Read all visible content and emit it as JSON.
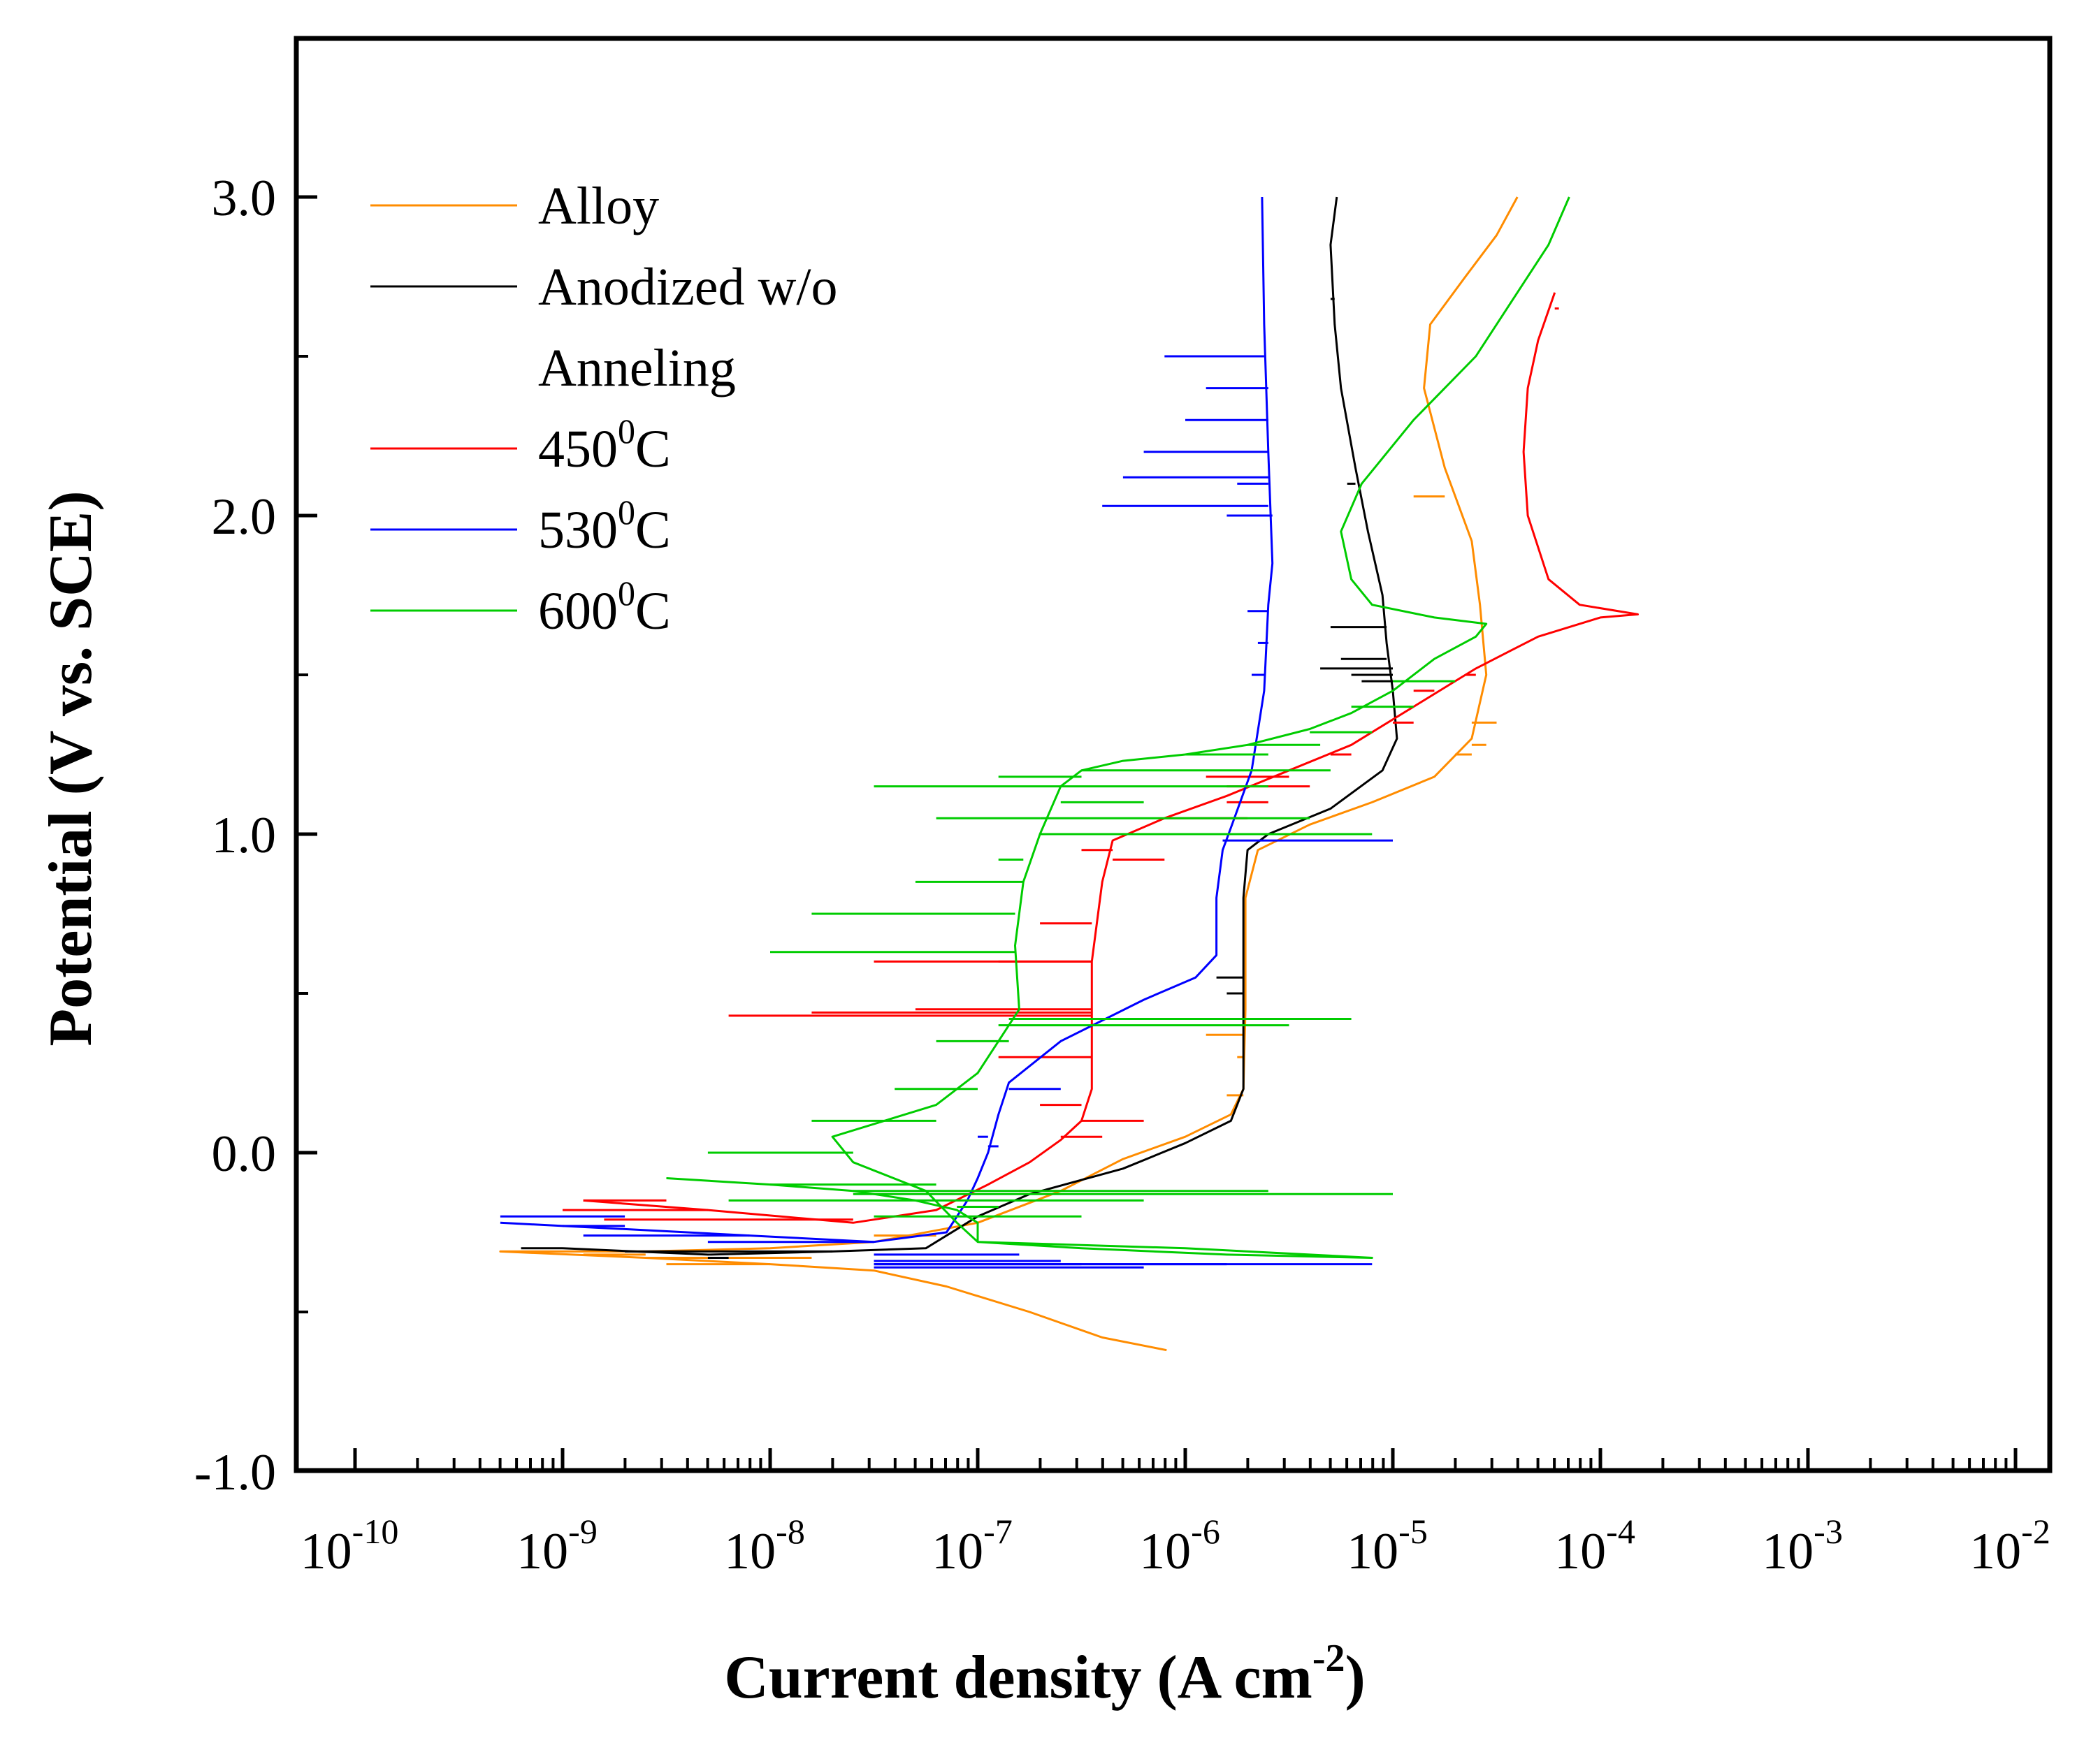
{
  "chart_data": {
    "type": "line",
    "title": "",
    "xlabel": "Current density (A cm",
    "xlabel_sup": "-2",
    "xlabel_end": ")",
    "ylabel": "Potential (V vs. SCE)",
    "x_scale": "log",
    "xlim_exp": [
      -10,
      -1.6
    ],
    "ylim": [
      -1.0,
      3.5
    ],
    "x_ticks": [
      {
        "exp": -10,
        "base": "10",
        "sup": "-10"
      },
      {
        "exp": -9,
        "base": "10",
        "sup": "-9"
      },
      {
        "exp": -8,
        "base": "10",
        "sup": "-8"
      },
      {
        "exp": -7,
        "base": "10",
        "sup": "-7"
      },
      {
        "exp": -6,
        "base": "10",
        "sup": "-6"
      },
      {
        "exp": -5,
        "base": "10",
        "sup": "-5"
      },
      {
        "exp": -4,
        "base": "10",
        "sup": "-4"
      },
      {
        "exp": -3,
        "base": "10",
        "sup": "-3"
      },
      {
        "exp": -2,
        "base": "10",
        "sup": "-2"
      }
    ],
    "y_ticks": [
      {
        "value": -1.0,
        "label": "-1.0"
      },
      {
        "value": 0.0,
        "label": "0.0"
      },
      {
        "value": 1.0,
        "label": "1.0"
      },
      {
        "value": 2.0,
        "label": "2.0"
      },
      {
        "value": 3.0,
        "label": "3.0"
      }
    ],
    "y_minor_ticks": [
      -0.5,
      0.5,
      1.5,
      2.5
    ],
    "legend": {
      "placement": "top-left",
      "entries": [
        {
          "lines": [
            {
              "text": "Alloy"
            }
          ],
          "color": "#ff8c00"
        },
        {
          "lines": [
            {
              "text": "Anodized w/o"
            },
            {
              "text": "Anneling"
            }
          ],
          "color": "#000000"
        },
        {
          "lines": [
            {
              "text": "450",
              "sup": "0",
              "tail": "C"
            }
          ],
          "color": "#ff0000"
        },
        {
          "lines": [
            {
              "text": "530",
              "sup": "0",
              "tail": "C"
            }
          ],
          "color": "#0000ff"
        },
        {
          "lines": [
            {
              "text": "600",
              "sup": "0",
              "tail": "C"
            }
          ],
          "color": "#00cc00"
        }
      ]
    },
    "series": [
      {
        "name": "Alloy",
        "color": "#ff8c00",
        "width": 3,
        "points": [
          [
            -6.09,
            -0.62
          ],
          [
            -6.4,
            -0.58
          ],
          [
            -6.75,
            -0.5
          ],
          [
            -7.15,
            -0.42
          ],
          [
            -7.5,
            -0.37
          ],
          [
            -8.0,
            -0.35
          ],
          [
            -8.6,
            -0.33
          ],
          [
            -9.3,
            -0.31
          ],
          [
            -8.6,
            -0.31
          ],
          [
            -8.0,
            -0.3
          ],
          [
            -7.5,
            -0.28
          ],
          [
            -7.0,
            -0.22
          ],
          [
            -6.6,
            -0.12
          ],
          [
            -6.3,
            -0.02
          ],
          [
            -6.0,
            0.05
          ],
          [
            -5.78,
            0.12
          ],
          [
            -5.72,
            0.2
          ],
          [
            -5.71,
            0.45
          ],
          [
            -5.71,
            0.8
          ],
          [
            -5.65,
            0.95
          ],
          [
            -5.4,
            1.03
          ],
          [
            -5.1,
            1.1
          ],
          [
            -4.8,
            1.18
          ],
          [
            -4.62,
            1.3
          ],
          [
            -4.55,
            1.5
          ],
          [
            -4.58,
            1.72
          ],
          [
            -4.62,
            1.92
          ],
          [
            -4.75,
            2.15
          ],
          [
            -4.85,
            2.4
          ],
          [
            -4.82,
            2.6
          ],
          [
            -4.65,
            2.75
          ],
          [
            -4.5,
            2.88
          ],
          [
            -4.4,
            3.0
          ]
        ],
        "spikes": [
          [
            -5.9,
            0.37
          ],
          [
            -5.8,
            0.18
          ],
          [
            -5.75,
            0.3
          ],
          [
            -4.85,
            2.28
          ],
          [
            -4.9,
            2.06
          ],
          [
            -4.5,
            1.35
          ],
          [
            -4.55,
            1.28
          ],
          [
            -4.7,
            1.25
          ],
          [
            -8.9,
            -0.32
          ],
          [
            -8.5,
            -0.35
          ],
          [
            -7.8,
            -0.33
          ],
          [
            -6.8,
            -0.12
          ],
          [
            -7.2,
            -0.26
          ]
        ]
      },
      {
        "name": "Anodized w/o Anneling",
        "color": "#000000",
        "width": 3,
        "points": [
          [
            -9.0,
            -0.3
          ],
          [
            -8.3,
            -0.32
          ],
          [
            -7.7,
            -0.31
          ],
          [
            -7.25,
            -0.3
          ],
          [
            -7.0,
            -0.2
          ],
          [
            -6.75,
            -0.13
          ],
          [
            -6.3,
            -0.05
          ],
          [
            -6.0,
            0.03
          ],
          [
            -5.78,
            0.1
          ],
          [
            -5.72,
            0.2
          ],
          [
            -5.72,
            0.8
          ],
          [
            -5.7,
            0.95
          ],
          [
            -5.6,
            1.0
          ],
          [
            -5.3,
            1.08
          ],
          [
            -5.05,
            1.2
          ],
          [
            -4.98,
            1.3
          ],
          [
            -5.0,
            1.45
          ],
          [
            -5.03,
            1.6
          ],
          [
            -5.05,
            1.75
          ],
          [
            -5.12,
            1.95
          ],
          [
            -5.18,
            2.15
          ],
          [
            -5.25,
            2.4
          ],
          [
            -5.28,
            2.6
          ],
          [
            -5.3,
            2.85
          ],
          [
            -5.27,
            3.0
          ]
        ],
        "spikes": [
          [
            -5.3,
            1.65
          ],
          [
            -5.25,
            1.55
          ],
          [
            -5.2,
            1.5
          ],
          [
            -5.35,
            1.52
          ],
          [
            -5.15,
            1.48
          ],
          [
            -5.3,
            2.68
          ],
          [
            -5.22,
            2.1
          ],
          [
            -5.8,
            0.5
          ],
          [
            -5.85,
            0.55
          ],
          [
            -9.2,
            -0.3
          ],
          [
            -8.7,
            -0.31
          ],
          [
            -8.2,
            -0.33
          ]
        ]
      },
      {
        "name": "450C",
        "color": "#ff0000",
        "width": 3,
        "points": [
          [
            -8.9,
            -0.15
          ],
          [
            -8.3,
            -0.18
          ],
          [
            -7.6,
            -0.22
          ],
          [
            -7.2,
            -0.18
          ],
          [
            -6.95,
            -0.1
          ],
          [
            -6.75,
            -0.03
          ],
          [
            -6.6,
            0.04
          ],
          [
            -6.5,
            0.1
          ],
          [
            -6.45,
            0.2
          ],
          [
            -6.45,
            0.4
          ],
          [
            -6.45,
            0.6
          ],
          [
            -6.4,
            0.85
          ],
          [
            -6.35,
            0.98
          ],
          [
            -6.1,
            1.05
          ],
          [
            -5.8,
            1.12
          ],
          [
            -5.5,
            1.2
          ],
          [
            -5.2,
            1.28
          ],
          [
            -4.9,
            1.4
          ],
          [
            -4.6,
            1.52
          ],
          [
            -4.3,
            1.62
          ],
          [
            -4.0,
            1.68
          ],
          [
            -3.82,
            1.69
          ],
          [
            -4.1,
            1.72
          ],
          [
            -4.25,
            1.8
          ],
          [
            -4.35,
            2.0
          ],
          [
            -4.37,
            2.2
          ],
          [
            -4.35,
            2.4
          ],
          [
            -4.3,
            2.55
          ],
          [
            -4.22,
            2.7
          ]
        ],
        "spikes": [
          [
            -8.5,
            -0.15
          ],
          [
            -9.0,
            -0.18
          ],
          [
            -8.8,
            -0.21
          ],
          [
            -8.2,
            0.43
          ],
          [
            -7.8,
            0.44
          ],
          [
            -7.3,
            0.45
          ],
          [
            -7.5,
            0.6
          ],
          [
            -6.9,
            0.6
          ],
          [
            -6.7,
            0.72
          ],
          [
            -6.1,
            0.92
          ],
          [
            -6.5,
            0.95
          ],
          [
            -6.4,
            0.9
          ],
          [
            -6.9,
            0.3
          ],
          [
            -6.7,
            0.15
          ],
          [
            -6.4,
            0.05
          ],
          [
            -6.2,
            0.1
          ],
          [
            -5.9,
            1.0
          ],
          [
            -5.7,
            1.05
          ],
          [
            -5.6,
            1.1
          ],
          [
            -5.4,
            1.15
          ],
          [
            -5.8,
            1.12
          ],
          [
            -5.5,
            1.2
          ],
          [
            -5.3,
            1.25
          ],
          [
            -5.9,
            1.18
          ],
          [
            -5.2,
            1.3
          ],
          [
            -5.0,
            1.35
          ],
          [
            -4.8,
            1.45
          ],
          [
            -4.65,
            1.5
          ],
          [
            -4.3,
            2.6
          ],
          [
            -4.2,
            2.65
          ]
        ]
      },
      {
        "name": "530C",
        "color": "#0000ff",
        "width": 3,
        "points": [
          [
            -9.3,
            -0.22
          ],
          [
            -8.7,
            -0.24
          ],
          [
            -8.1,
            -0.26
          ],
          [
            -7.5,
            -0.28
          ],
          [
            -7.15,
            -0.25
          ],
          [
            -7.05,
            -0.15
          ],
          [
            -7.0,
            -0.08
          ],
          [
            -6.95,
            0.0
          ],
          [
            -6.9,
            0.12
          ],
          [
            -6.85,
            0.22
          ],
          [
            -6.6,
            0.35
          ],
          [
            -6.2,
            0.48
          ],
          [
            -5.95,
            0.55
          ],
          [
            -5.85,
            0.62
          ],
          [
            -5.85,
            0.8
          ],
          [
            -5.82,
            0.95
          ],
          [
            -5.78,
            1.02
          ],
          [
            -5.68,
            1.2
          ],
          [
            -5.62,
            1.45
          ],
          [
            -5.6,
            1.72
          ],
          [
            -5.58,
            1.85
          ],
          [
            -5.6,
            2.2
          ],
          [
            -5.62,
            2.6
          ],
          [
            -5.63,
            3.0
          ]
        ],
        "spikes": [
          [
            -8.9,
            -0.26
          ],
          [
            -9.0,
            -0.23
          ],
          [
            -8.7,
            -0.2
          ],
          [
            -8.3,
            -0.28
          ],
          [
            -6.8,
            -0.32
          ],
          [
            -6.6,
            -0.34
          ],
          [
            -6.5,
            -0.35
          ],
          [
            -6.2,
            -0.36
          ],
          [
            -5.8,
            -0.35
          ],
          [
            -5.1,
            -0.35
          ],
          [
            -7.0,
            0.05
          ],
          [
            -6.6,
            0.2
          ],
          [
            -6.9,
            0.02
          ],
          [
            -6.3,
            2.12
          ],
          [
            -6.4,
            2.03
          ],
          [
            -6.2,
            2.2
          ],
          [
            -6.1,
            2.5
          ],
          [
            -5.9,
            2.4
          ],
          [
            -6.0,
            2.3
          ],
          [
            -5.8,
            2.0
          ],
          [
            -5.75,
            2.1
          ],
          [
            -5.7,
            1.7
          ],
          [
            -5.65,
            1.6
          ],
          [
            -5.68,
            1.5
          ],
          [
            -5.0,
            0.98
          ]
        ]
      },
      {
        "name": "600C",
        "color": "#00cc00",
        "width": 3,
        "points": [
          [
            -8.5,
            -0.08
          ],
          [
            -8.0,
            -0.1
          ],
          [
            -7.6,
            -0.12
          ],
          [
            -7.3,
            -0.15
          ],
          [
            -7.1,
            -0.18
          ],
          [
            -7.0,
            -0.22
          ],
          [
            -7.0,
            -0.28
          ],
          [
            -6.5,
            -0.3
          ],
          [
            -5.8,
            -0.32
          ],
          [
            -5.1,
            -0.33
          ],
          [
            -6.0,
            -0.3
          ],
          [
            -7.0,
            -0.28
          ],
          [
            -7.1,
            -0.22
          ],
          [
            -7.25,
            -0.12
          ],
          [
            -7.6,
            -0.03
          ],
          [
            -7.7,
            0.05
          ],
          [
            -7.2,
            0.15
          ],
          [
            -7.0,
            0.25
          ],
          [
            -6.85,
            0.4
          ],
          [
            -6.8,
            0.45
          ],
          [
            -6.82,
            0.65
          ],
          [
            -6.78,
            0.85
          ],
          [
            -6.7,
            1.0
          ],
          [
            -6.6,
            1.15
          ],
          [
            -6.5,
            1.2
          ],
          [
            -6.3,
            1.23
          ],
          [
            -6.0,
            1.25
          ],
          [
            -5.7,
            1.28
          ],
          [
            -5.4,
            1.33
          ],
          [
            -5.2,
            1.38
          ],
          [
            -5.0,
            1.45
          ],
          [
            -4.8,
            1.55
          ],
          [
            -4.6,
            1.62
          ],
          [
            -4.55,
            1.66
          ],
          [
            -4.8,
            1.68
          ],
          [
            -5.1,
            1.72
          ],
          [
            -5.2,
            1.8
          ],
          [
            -5.25,
            1.95
          ],
          [
            -5.15,
            2.1
          ],
          [
            -4.9,
            2.3
          ],
          [
            -4.6,
            2.5
          ],
          [
            -4.4,
            2.7
          ],
          [
            -4.25,
            2.85
          ],
          [
            -4.15,
            3.0
          ]
        ],
        "spikes": [
          [
            -8.2,
            -0.15
          ],
          [
            -7.5,
            -0.2
          ],
          [
            -7.2,
            -0.1
          ],
          [
            -6.9,
            -0.17
          ],
          [
            -6.5,
            -0.2
          ],
          [
            -6.2,
            -0.15
          ],
          [
            -5.6,
            -0.12
          ],
          [
            -5.0,
            -0.13
          ],
          [
            -8.3,
            0.0
          ],
          [
            -7.8,
            0.1
          ],
          [
            -7.4,
            0.2
          ],
          [
            -7.2,
            0.35
          ],
          [
            -6.9,
            0.4
          ],
          [
            -5.2,
            0.42
          ],
          [
            -5.5,
            0.4
          ],
          [
            -8.0,
            0.63
          ],
          [
            -7.8,
            0.75
          ],
          [
            -7.3,
            0.85
          ],
          [
            -6.9,
            0.92
          ],
          [
            -6.5,
            1.0
          ],
          [
            -7.2,
            1.05
          ],
          [
            -7.5,
            1.15
          ],
          [
            -6.9,
            1.18
          ],
          [
            -5.1,
            1.0
          ],
          [
            -5.4,
            1.05
          ],
          [
            -6.2,
            1.1
          ],
          [
            -5.6,
            1.15
          ],
          [
            -5.3,
            1.2
          ],
          [
            -5.6,
            1.25
          ],
          [
            -5.35,
            1.28
          ],
          [
            -5.1,
            1.32
          ],
          [
            -4.9,
            1.4
          ],
          [
            -4.7,
            1.48
          ]
        ]
      }
    ]
  }
}
